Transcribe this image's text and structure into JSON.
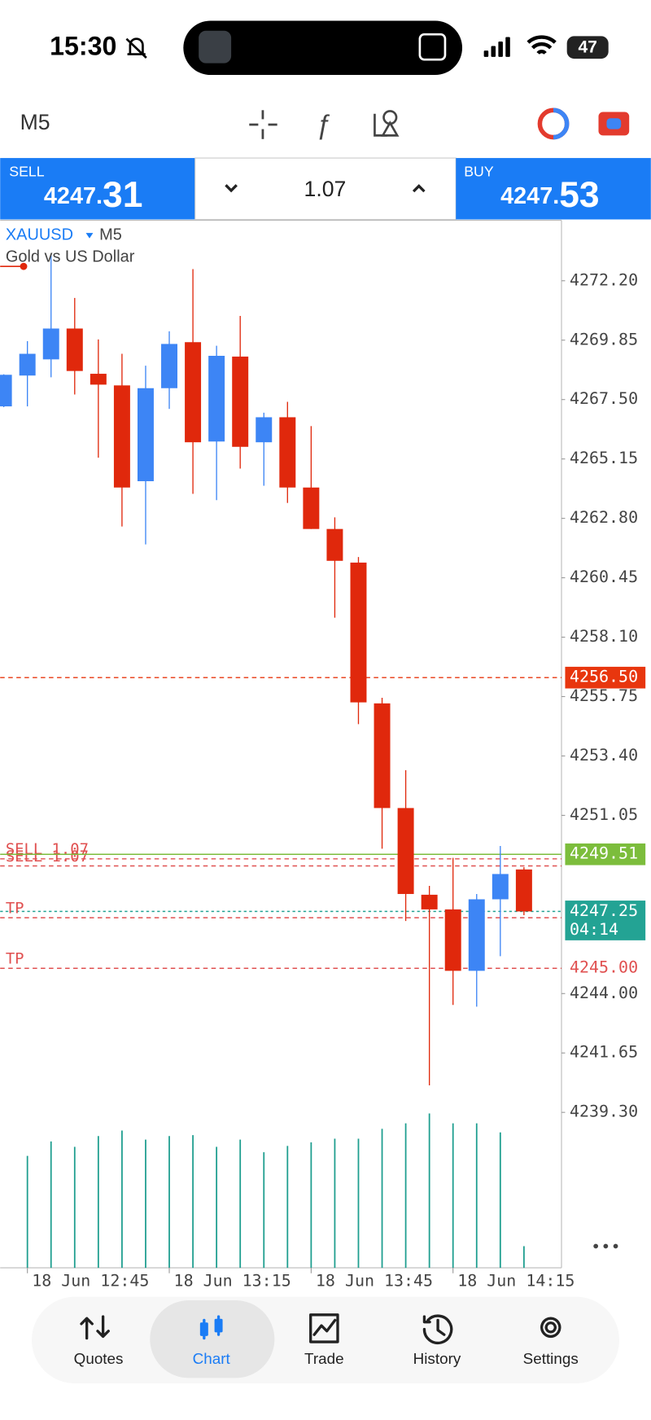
{
  "status_bar": {
    "time": "15:30",
    "battery": "47"
  },
  "toolbar": {
    "timeframe": "M5"
  },
  "trade_panel": {
    "sell_label": "SELL",
    "sell_main": "4247.",
    "sell_frac": "31",
    "lot": "1.07",
    "buy_label": "BUY",
    "buy_main": "4247.",
    "buy_frac": "53"
  },
  "chart_data": {
    "type": "candlestick",
    "symbol": "XAUUSD",
    "timeframe": "M5",
    "description": "Gold vs US Dollar",
    "categories": [
      null,
      "18 Jun 12:45",
      null,
      null,
      null,
      null,
      null,
      "18 Jun 13:15",
      null,
      null,
      null,
      null,
      null,
      "18 Jun 13:45",
      null,
      null,
      null,
      null,
      null,
      "18 Jun 14:15",
      null,
      null,
      null
    ],
    "open": [
      4267.23,
      4268.45,
      4269.09,
      4270.31,
      4268.52,
      4268.06,
      4264.27,
      4267.95,
      4269.77,
      4265.84,
      4269.2,
      4265.81,
      4266.8,
      4264.02,
      4262.38,
      4261.05,
      4255.48,
      4251.34,
      4247.91,
      4247.33,
      4244.9,
      4247.73,
      4248.91
    ],
    "high": [
      4268.5,
      4269.81,
      4273.2,
      4271.52,
      4269.88,
      4269.31,
      4268.84,
      4270.2,
      4272.66,
      4269.63,
      4270.81,
      4266.98,
      4267.41,
      4266.45,
      4262.84,
      4261.27,
      4255.7,
      4252.84,
      4248.26,
      4249.37,
      4247.94,
      4249.84,
      4249.0
    ],
    "low": [
      4267.2,
      4267.23,
      4268.38,
      4267.7,
      4265.2,
      4262.48,
      4261.77,
      4267.13,
      4263.77,
      4263.52,
      4264.77,
      4264.09,
      4263.41,
      4262.38,
      4258.87,
      4254.66,
      4249.73,
      4246.87,
      4240.37,
      4243.55,
      4243.48,
      4245.48,
      4247.1
    ],
    "close": [
      4268.48,
      4269.31,
      4270.31,
      4268.63,
      4268.09,
      4264.02,
      4267.95,
      4269.7,
      4265.81,
      4269.23,
      4265.63,
      4266.8,
      4264.02,
      4262.38,
      4261.12,
      4255.52,
      4251.34,
      4247.94,
      4247.33,
      4244.9,
      4247.73,
      4248.73,
      4247.25
    ],
    "volume": [
      null,
      1240,
      1400,
      1340,
      1460,
      1520,
      1420,
      1460,
      1470,
      1340,
      1420,
      1280,
      1350,
      1390,
      1430,
      1430,
      1540,
      1600,
      1710,
      1600,
      1600,
      1500,
      240
    ],
    "ylim": [
      4233.15,
      4274.59
    ],
    "yticks": [
      {
        "value": 4272.2,
        "label": "4272.20"
      },
      {
        "value": 4269.85,
        "label": "4269.85"
      },
      {
        "value": 4267.5,
        "label": "4267.50"
      },
      {
        "value": 4265.15,
        "label": "4265.15"
      },
      {
        "value": 4262.8,
        "label": "4262.80"
      },
      {
        "value": 4260.45,
        "label": "4260.45"
      },
      {
        "value": 4258.1,
        "label": "4258.10"
      },
      {
        "value": 4255.75,
        "label": "4255.75"
      },
      {
        "value": 4253.4,
        "label": "4253.40"
      },
      {
        "value": 4251.05,
        "label": "4251.05"
      },
      {
        "value": 4244.0,
        "label": "4244.00"
      },
      {
        "value": 4241.65,
        "label": "4241.65"
      },
      {
        "value": 4239.3,
        "label": "4239.30"
      }
    ],
    "colors": {
      "up": "#3d85f5",
      "down": "#e0280c",
      "volume": "#1e9e8f"
    },
    "levels": [
      {
        "value": 4256.5,
        "label": "4256.50",
        "color": "#e8360e",
        "style": "dashed",
        "label_style": "box"
      },
      {
        "value": 4249.33,
        "text": "SELL 1.07",
        "color": "#e05050",
        "style": "dashed"
      },
      {
        "value": 4249.05,
        "text": "SELL 1.07",
        "color": "#e05050",
        "style": "dashed"
      },
      {
        "value": 4249.51,
        "label": "4249.51",
        "color": "#7cbd3c",
        "style": "solid",
        "label_style": "box"
      },
      {
        "value": 4247.25,
        "label": "4247.25",
        "countdown": "04:14",
        "color": "#23a394",
        "style": "dotted",
        "label_style": "box"
      },
      {
        "value": 4247.0,
        "text": "TP",
        "color": "#e05050",
        "style": "dashed"
      },
      {
        "value": 4245.0,
        "label": "4245.00",
        "text": "TP",
        "color": "#e05050",
        "style": "dashed",
        "label_style": "text"
      }
    ]
  },
  "nav": {
    "items": [
      "Quotes",
      "Chart",
      "Trade",
      "History",
      "Settings"
    ],
    "selected": 1
  }
}
